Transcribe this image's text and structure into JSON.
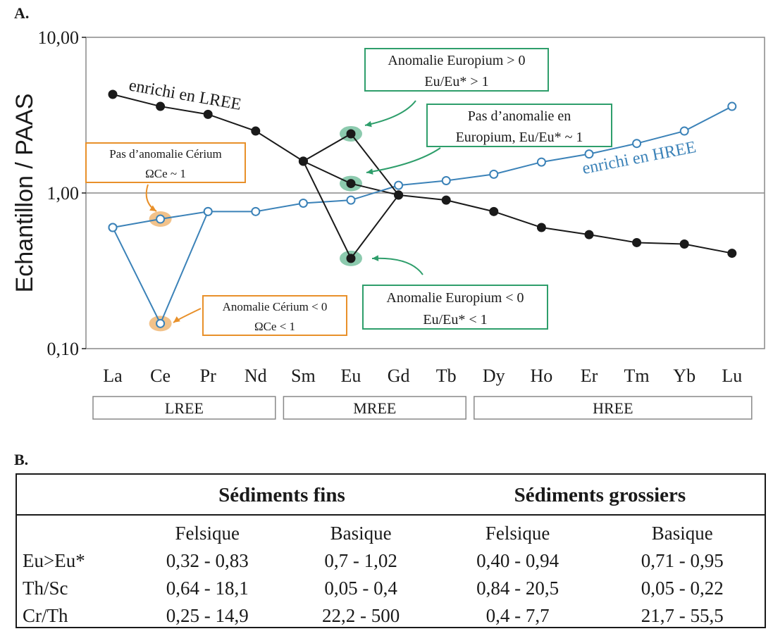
{
  "panel_a_label": "A.",
  "panel_b_label": "B.",
  "colors": {
    "series_black": "#1a1a1a",
    "series_blue": "#3b82b8",
    "ce_orange": "#e8902a",
    "eu_green": "#2e9e6b",
    "frame_gray": "#888888"
  },
  "chart_data": {
    "type": "line",
    "ylabel": "Echantillon / PAAS",
    "yscale": "log",
    "ylim": [
      0.1,
      10
    ],
    "yticks": [
      "0,10",
      "1,00",
      "10,00"
    ],
    "yticks_values": [
      0.1,
      1,
      10
    ],
    "reference_line": 1.0,
    "categories": [
      "La",
      "Ce",
      "Pr",
      "Nd",
      "Sm",
      "Eu",
      "Gd",
      "Tb",
      "Dy",
      "Ho",
      "Er",
      "Tm",
      "Yb",
      "Lu"
    ],
    "series": [
      {
        "label_ref": "enrichi en LREE",
        "color": "#1a1a1a",
        "marker": "filled",
        "values": [
          4.3,
          3.6,
          3.2,
          2.5,
          1.6,
          1.15,
          0.97,
          0.9,
          0.76,
          0.6,
          0.54,
          0.48,
          0.47,
          0.41
        ]
      },
      {
        "label_ref": "enrichi en HREE",
        "color": "#3b82b8",
        "marker": "open",
        "values": [
          0.6,
          0.68,
          0.76,
          0.76,
          0.86,
          0.9,
          1.12,
          1.2,
          1.32,
          1.58,
          1.78,
          2.08,
          2.5,
          3.6
        ]
      },
      {
        "label_ref": "Eu positive anomaly",
        "color": "#1a1a1a",
        "marker": "filled",
        "x": [
          "Sm",
          "Eu",
          "Gd"
        ],
        "values": [
          1.6,
          2.4,
          0.97
        ]
      },
      {
        "label_ref": "Eu negative anomaly",
        "color": "#1a1a1a",
        "marker": "filled",
        "x": [
          "Sm",
          "Eu",
          "Gd"
        ],
        "values": [
          1.6,
          0.38,
          0.97
        ]
      },
      {
        "label_ref": "Ce negative anomaly",
        "color": "#3b82b8",
        "marker": "open",
        "x": [
          "La",
          "Ce",
          "Pr"
        ],
        "values": [
          0.6,
          0.145,
          0.76
        ]
      }
    ],
    "series_labels": [
      "enrichi en LREE",
      "enrichi en HREE"
    ],
    "groups": [
      {
        "label": "LREE",
        "from": "La",
        "to": "Nd"
      },
      {
        "label": "MREE",
        "from": "Sm",
        "to": "Tb"
      },
      {
        "label": "HREE",
        "from": "Dy",
        "to": "Lu"
      }
    ],
    "annotations": [
      {
        "lines": [
          "Pas d’anomalie Cérium",
          "ΩCe ~ 1"
        ],
        "color": "#e8902a",
        "target": [
          "Ce",
          0.68
        ]
      },
      {
        "lines": [
          "Anomalie Cérium < 0",
          "ΩCe < 1"
        ],
        "color": "#e8902a",
        "target": [
          "Ce",
          0.145
        ]
      },
      {
        "lines": [
          "Anomalie Europium > 0",
          "Eu/Eu* > 1"
        ],
        "color": "#2e9e6b",
        "target": [
          "Eu",
          2.4
        ]
      },
      {
        "lines": [
          "Pas d’anomalie en",
          "Europium, Eu/Eu* ~ 1"
        ],
        "color": "#2e9e6b",
        "target": [
          "Eu",
          1.15
        ]
      },
      {
        "lines": [
          "Anomalie Europium < 0",
          "Eu/Eu* < 1"
        ],
        "color": "#2e9e6b",
        "target": [
          "Eu",
          0.38
        ]
      }
    ]
  },
  "table": {
    "group_headers": [
      "Sédiments fins",
      "Sédiments grossiers"
    ],
    "sub_headers": [
      "Felsique",
      "Basique",
      "Felsique",
      "Basique"
    ],
    "rows": [
      {
        "label": "Eu>Eu*",
        "cells": [
          "0,32 - 0,83",
          "0,7 - 1,02",
          "0,40 - 0,94",
          "0,71 - 0,95"
        ]
      },
      {
        "label": "Th/Sc",
        "cells": [
          "0,64 - 18,1",
          "0,05 - 0,4",
          "0,84 - 20,5",
          "0,05 - 0,22"
        ]
      },
      {
        "label": "Cr/Th",
        "cells": [
          "0,25 - 14,9",
          "22,2 - 500",
          "0,4 - 7,7",
          "21,7 - 55,5"
        ]
      }
    ]
  }
}
